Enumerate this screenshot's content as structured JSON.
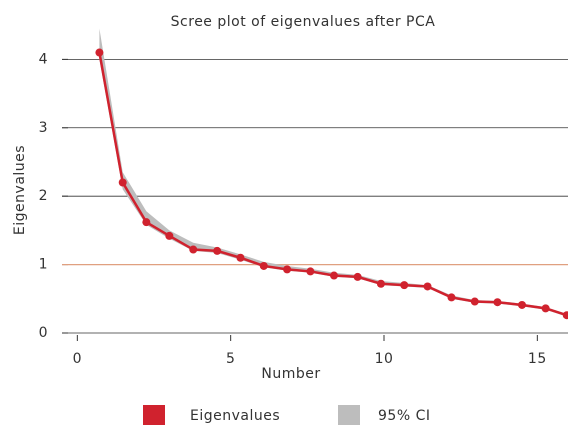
{
  "chart_data": {
    "type": "line",
    "title": "Scree plot of eigenvalues after PCA",
    "xlabel": "Number",
    "ylabel": "Eigenvalues",
    "x": [
      0.72,
      1.48,
      2.25,
      3.0,
      3.78,
      4.56,
      5.32,
      6.08,
      6.84,
      7.6,
      8.37,
      9.14,
      9.9,
      10.66,
      11.42,
      12.2,
      12.96,
      13.7,
      14.5,
      15.27,
      15.96
    ],
    "series": [
      {
        "name": "Eigenvalues",
        "color": "#d0222e",
        "values": [
          4.1,
          2.2,
          1.62,
          1.42,
          1.22,
          1.2,
          1.1,
          0.98,
          0.93,
          0.9,
          0.84,
          0.82,
          0.72,
          0.7,
          0.68,
          0.52,
          0.46,
          0.45,
          0.41,
          0.36,
          0.26
        ]
      },
      {
        "name": "95% CI",
        "color": "#bdbdbd",
        "upper": [
          4.45,
          2.35,
          1.78,
          1.5,
          1.32,
          1.25,
          1.15,
          1.04,
          0.98,
          0.94,
          0.88,
          0.85,
          0.76,
          0.73,
          0.7,
          0.55,
          0.48,
          0.47,
          0.43,
          0.38,
          0.28
        ],
        "lower": [
          4.0,
          2.1,
          1.58,
          1.38,
          1.2,
          1.17,
          1.07,
          0.96,
          0.91,
          0.88,
          0.82,
          0.8,
          0.7,
          0.68,
          0.66,
          0.5,
          0.44,
          0.43,
          0.39,
          0.34,
          0.24
        ]
      }
    ],
    "reference_line": {
      "value": 1,
      "color": "#e0a080"
    },
    "xlim": [
      -0.5,
      16
    ],
    "xticks": [
      0,
      5,
      10,
      15
    ],
    "ylim": [
      0,
      4.4
    ],
    "yticks": [
      0,
      1,
      2,
      3,
      4
    ],
    "grid": true,
    "legend": "bottom"
  }
}
